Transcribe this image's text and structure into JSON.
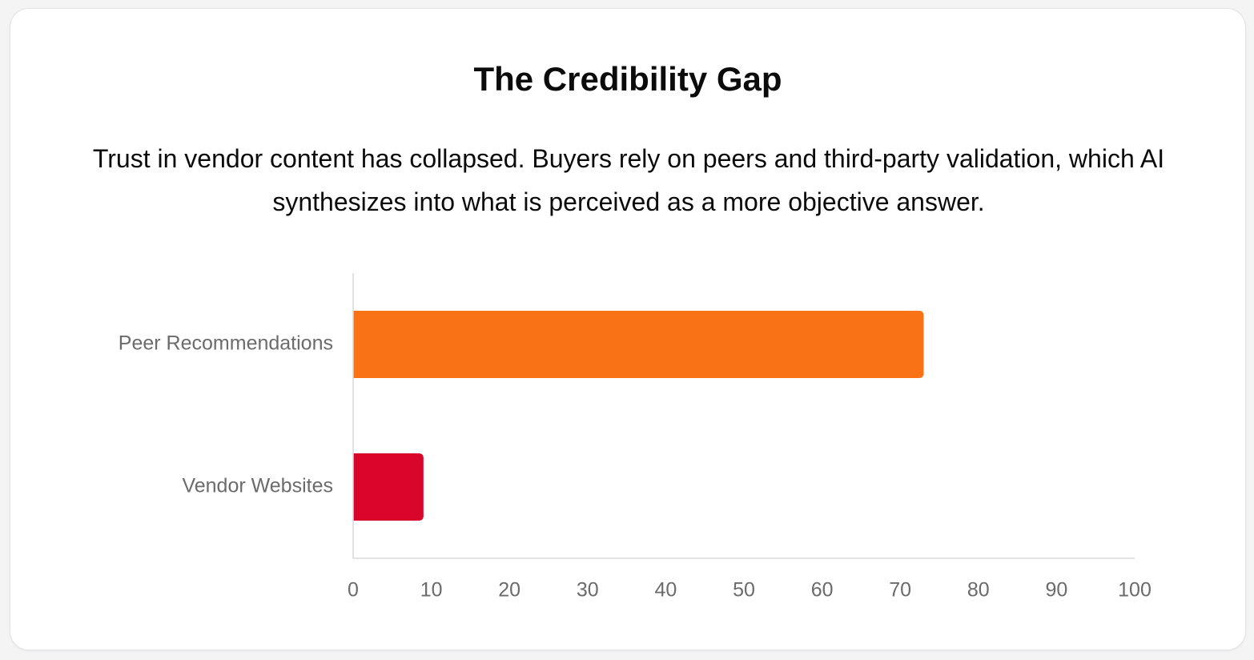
{
  "title": "The Credibility Gap",
  "subtitle": "Trust in vendor content has collapsed. Buyers rely on peers and third-party validation, which AI synthesizes into what is perceived as a more objective answer.",
  "colors": {
    "peer": "#f97316",
    "vendor": "#d9052b",
    "axis": "#d8d8d8",
    "label": "#6b6b6b"
  },
  "chart_data": {
    "type": "bar",
    "orientation": "horizontal",
    "categories": [
      "Peer Recommendations",
      "Vendor Websites"
    ],
    "values": [
      73,
      9
    ],
    "bar_colors": [
      "#f97316",
      "#d9052b"
    ],
    "xlim": [
      0,
      100
    ],
    "xticks": [
      0,
      10,
      20,
      30,
      40,
      50,
      60,
      70,
      80,
      90,
      100
    ],
    "grid": false,
    "legend": "none"
  }
}
